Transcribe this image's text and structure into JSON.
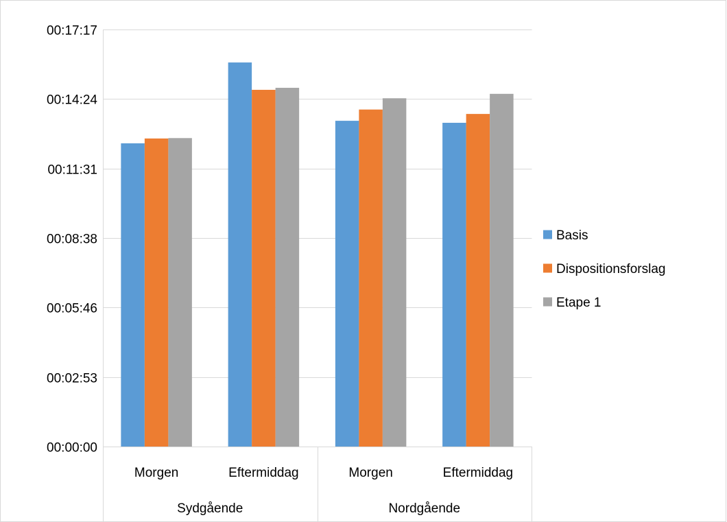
{
  "chart_data": {
    "type": "bar",
    "title": "",
    "xlabel": "",
    "ylabel": "",
    "y_unit": "seconds",
    "ylim": [
      0,
      1037
    ],
    "yticks": [
      0,
      173,
      346,
      518,
      691,
      864,
      1037
    ],
    "ytick_labels": [
      "00:00:00",
      "00:02:53",
      "00:05:46",
      "00:08:38",
      "00:11:31",
      "00:14:24",
      "00:17:17"
    ],
    "grid": true,
    "legend_position": "right",
    "groups": [
      {
        "label": "Sydgående",
        "categories": [
          "Morgen",
          "Eftermiddag"
        ]
      },
      {
        "label": "Nordgående",
        "categories": [
          "Morgen",
          "Eftermiddag"
        ]
      }
    ],
    "categories": [
      "Morgen",
      "Eftermiddag",
      "Morgen",
      "Eftermiddag"
    ],
    "series": [
      {
        "name": "Basis",
        "color": "#5b9bd5",
        "values": [
          754,
          955,
          810,
          805
        ]
      },
      {
        "name": "Dispositionsforslag",
        "color": "#ed7d31",
        "values": [
          766,
          887,
          838,
          827
        ]
      },
      {
        "name": "Etape 1",
        "color": "#a5a5a5",
        "values": [
          767,
          892,
          866,
          877
        ]
      }
    ]
  }
}
